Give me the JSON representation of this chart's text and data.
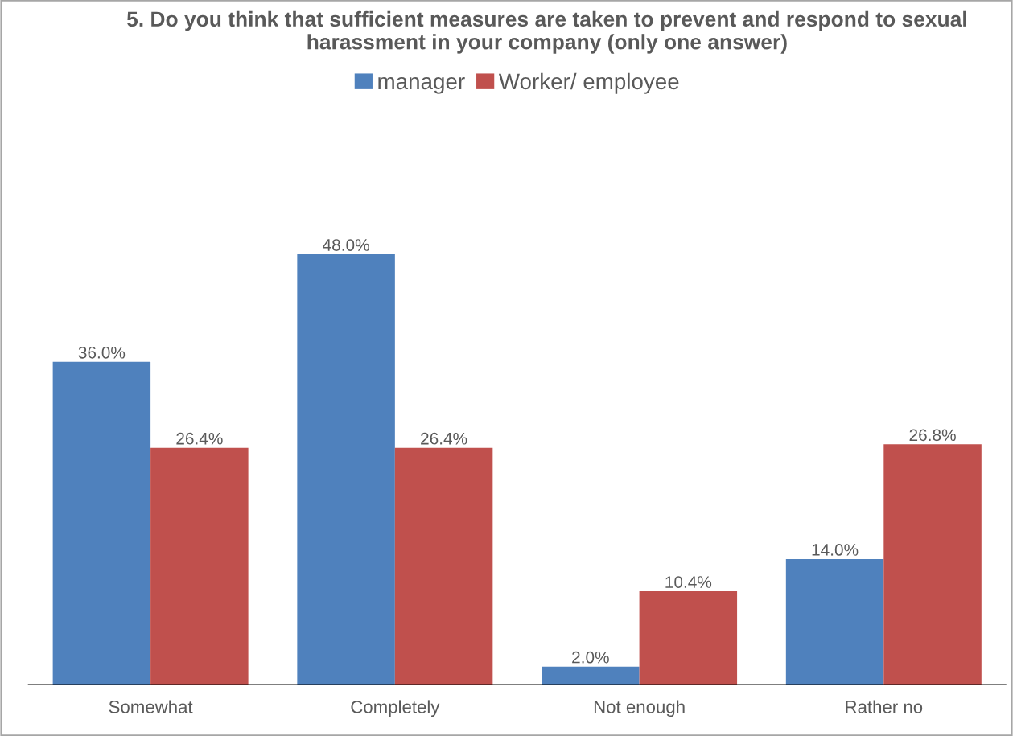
{
  "chart_data": {
    "type": "bar",
    "title": "5. Do you think that sufficient measures are taken to prevent and respond to sexual harassment in your company (only one answer)",
    "categories": [
      "Somewhat",
      "Completely",
      "Not enough",
      "Rather no"
    ],
    "series": [
      {
        "name": "manager",
        "color": "#4f81bd",
        "values": [
          36.0,
          48.0,
          2.0,
          14.0
        ],
        "value_labels": [
          "36.0%",
          "48.0%",
          "2.0%",
          "14.0%"
        ]
      },
      {
        "name": "Worker/ employee",
        "color": "#c0504d",
        "values": [
          26.4,
          26.4,
          10.4,
          26.8
        ],
        "value_labels": [
          "26.4%",
          "26.4%",
          "10.4%",
          "26.8%"
        ]
      }
    ],
    "legend": "top",
    "grid": false
  }
}
